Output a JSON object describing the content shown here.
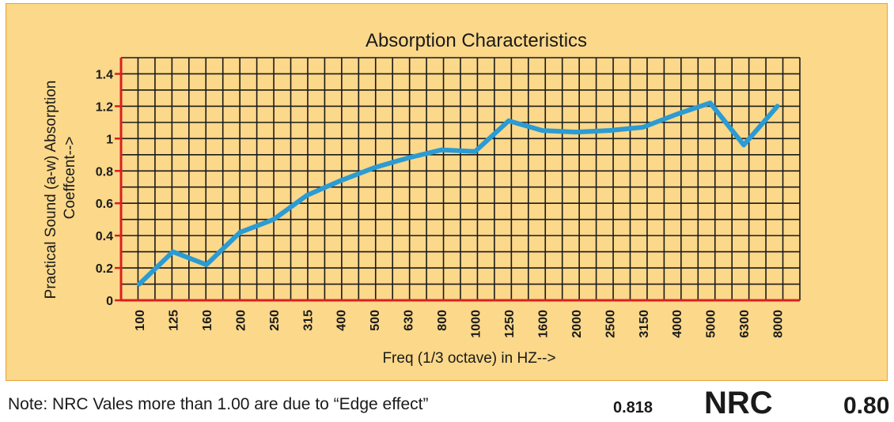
{
  "chart_data": {
    "type": "line",
    "title": "Absorption Characteristics",
    "xlabel": "Freq (1/3 octave) in HZ-->",
    "ylabel_line1": "Practical Sound (a-w) Absorption",
    "ylabel_line2": "Coeffcent-->",
    "categories": [
      "100",
      "125",
      "160",
      "200",
      "250",
      "315",
      "400",
      "500",
      "630",
      "800",
      "1000",
      "1250",
      "1600",
      "2000",
      "2500",
      "3150",
      "4000",
      "5000",
      "6300",
      "8000"
    ],
    "y_ticks": [
      "0",
      "0.2",
      "0.4",
      "0.6",
      "0.8",
      "1",
      "1.2",
      "1.4"
    ],
    "ylim": [
      0,
      1.5
    ],
    "series": [
      {
        "name": "Absorption Coefficient",
        "color": "#2b9bd3",
        "values": [
          0.1,
          0.3,
          0.22,
          0.42,
          0.5,
          0.65,
          0.74,
          0.82,
          0.88,
          0.93,
          0.92,
          1.11,
          1.05,
          1.04,
          1.05,
          1.07,
          1.15,
          1.22,
          0.96,
          1.2
        ]
      }
    ],
    "grid": true,
    "axis_color": "#d92020"
  },
  "footer": {
    "note": "Note: NRC Vales more than 1.00 are due to “Edge effect”",
    "nrc_value_computed": "0.818",
    "nrc_label": "NRC",
    "nrc_value_rounded": "0.80"
  }
}
